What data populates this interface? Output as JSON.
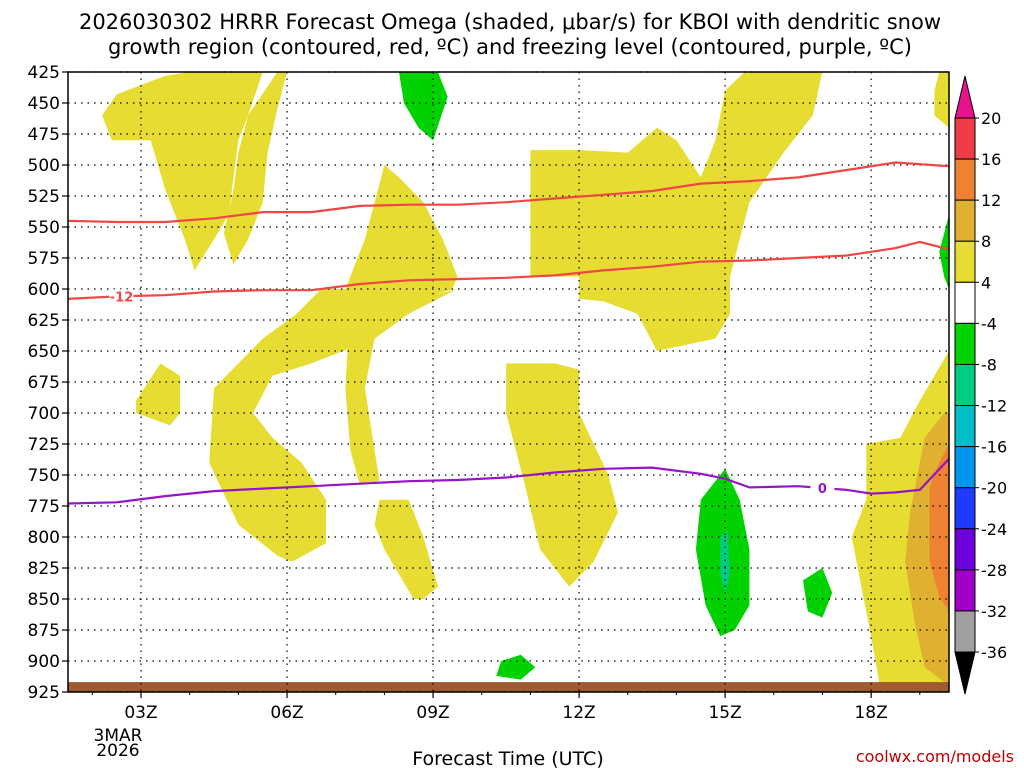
{
  "chart_data": {
    "type": "time-height",
    "title_line1": "2026030302 HRRR Forecast Omega (shaded, μbar/s) for KBOI with dendritic snow",
    "title_line2": "growth region (contoured, red, ºC) and freezing level (contoured, purple, ºC)",
    "xlabel": "Forecast Time (UTC)",
    "credit": "coolwx.com/models",
    "date_label": [
      "3MAR",
      "2026"
    ],
    "xlim": [
      1.5,
      19.6
    ],
    "x_ticks": [
      {
        "hour": 3,
        "label": "03Z"
      },
      {
        "hour": 6,
        "label": "06Z"
      },
      {
        "hour": 9,
        "label": "09Z"
      },
      {
        "hour": 12,
        "label": "12Z"
      },
      {
        "hour": 15,
        "label": "15Z"
      },
      {
        "hour": 18,
        "label": "18Z"
      }
    ],
    "y_levels": [
      "425",
      "450",
      "475",
      "500",
      "525",
      "550",
      "575",
      "600",
      "625",
      "650",
      "675",
      "700",
      "725",
      "750",
      "775",
      "800",
      "825",
      "850",
      "875",
      "900",
      "925"
    ],
    "ylim_hPa": [
      425,
      925
    ],
    "colorbar": {
      "labels": [
        "20",
        "16",
        "12",
        "8",
        "4",
        "-4",
        "-8",
        "-12",
        "-16",
        "-20",
        "-24",
        "-28",
        "-32",
        "-36"
      ],
      "bins": [
        {
          "from": 16,
          "to": 20,
          "color": "#f03c46"
        },
        {
          "from": 12,
          "to": 16,
          "color": "#ee8232"
        },
        {
          "from": 8,
          "to": 12,
          "color": "#e0b030"
        },
        {
          "from": 4,
          "to": 8,
          "color": "#e6dc32"
        },
        {
          "from": -4,
          "to": 4,
          "color": "#ffffff"
        },
        {
          "from": -8,
          "to": -4,
          "color": "#00d200"
        },
        {
          "from": -12,
          "to": -8,
          "color": "#00cc82"
        },
        {
          "from": -16,
          "to": -12,
          "color": "#00bec8"
        },
        {
          "from": -20,
          "to": -16,
          "color": "#0096f0"
        },
        {
          "from": -24,
          "to": -20,
          "color": "#1e3cff"
        },
        {
          "from": -28,
          "to": -24,
          "color": "#6e00dc"
        },
        {
          "from": -32,
          "to": -28,
          "color": "#a000c8"
        },
        {
          "from": -36,
          "to": -32,
          "color": "#a0a0a0"
        }
      ],
      "top_arrow_color": "#e6148c",
      "bottom_arrow_color": "#000000"
    },
    "colors": {
      "dgz": "#f04646",
      "freezing": "#9614c8",
      "terrain": "#a05a32",
      "green": "#00d200",
      "yellow": "#e6dc32",
      "gold": "#e0b030",
      "orange": "#ee8232",
      "teal": "#00cc82"
    },
    "contours": [
      {
        "name": "dgz-upper",
        "label": "",
        "color": "dgz",
        "points": [
          [
            1.5,
            545
          ],
          [
            2.5,
            546
          ],
          [
            3.5,
            546
          ],
          [
            4.5,
            543
          ],
          [
            5.5,
            538
          ],
          [
            6.5,
            538
          ],
          [
            7.5,
            533
          ],
          [
            8.5,
            532
          ],
          [
            9.5,
            532
          ],
          [
            10.5,
            530
          ],
          [
            11.5,
            527
          ],
          [
            12.5,
            524
          ],
          [
            13.5,
            521
          ],
          [
            14.5,
            515
          ],
          [
            15.5,
            513
          ],
          [
            16.5,
            510
          ],
          [
            17.5,
            504
          ],
          [
            18.5,
            498
          ],
          [
            19.6,
            501
          ]
        ]
      },
      {
        "name": "dgz-lower",
        "label": "-12",
        "label_hour": 2.6,
        "color": "dgz",
        "points": [
          [
            1.5,
            608
          ],
          [
            2.5,
            606
          ],
          [
            3.5,
            605
          ],
          [
            4.5,
            602
          ],
          [
            5.5,
            601
          ],
          [
            6.5,
            601
          ],
          [
            7.5,
            596
          ],
          [
            8.5,
            593
          ],
          [
            9.5,
            592
          ],
          [
            10.5,
            591
          ],
          [
            11.5,
            589
          ],
          [
            12.5,
            585
          ],
          [
            13.5,
            582
          ],
          [
            14.5,
            578
          ],
          [
            15.5,
            577
          ],
          [
            16.5,
            575
          ],
          [
            17.5,
            573
          ],
          [
            18.5,
            567
          ],
          [
            19.0,
            562
          ],
          [
            19.6,
            568
          ]
        ]
      },
      {
        "name": "freezing-level",
        "label": "0",
        "label_hour": 17.0,
        "color": "freezing",
        "points": [
          [
            1.5,
            773
          ],
          [
            2.5,
            772
          ],
          [
            3.5,
            767
          ],
          [
            4.5,
            763
          ],
          [
            5.5,
            761
          ],
          [
            6.5,
            759
          ],
          [
            7.5,
            757
          ],
          [
            8.5,
            755
          ],
          [
            9.5,
            754
          ],
          [
            10.5,
            752
          ],
          [
            11.5,
            748
          ],
          [
            12.5,
            745
          ],
          [
            13.5,
            744
          ],
          [
            14.5,
            749
          ],
          [
            15.0,
            753
          ],
          [
            15.5,
            760
          ],
          [
            16.5,
            759
          ],
          [
            17.5,
            762
          ],
          [
            18.0,
            765
          ],
          [
            18.5,
            764
          ],
          [
            19.0,
            762
          ],
          [
            19.6,
            737
          ]
        ]
      }
    ],
    "shaded_regions": [
      {
        "color": "yellow",
        "points": [
          [
            2.5,
            443
          ],
          [
            3.5,
            428
          ],
          [
            4.0,
            425
          ],
          [
            5.5,
            425
          ],
          [
            5.2,
            460
          ],
          [
            5.0,
            480
          ],
          [
            4.9,
            510
          ],
          [
            4.8,
            540
          ],
          [
            4.5,
            560
          ],
          [
            4.1,
            585
          ],
          [
            3.9,
            560
          ],
          [
            3.5,
            520
          ],
          [
            3.2,
            480
          ],
          [
            2.4,
            480
          ],
          [
            2.2,
            460
          ]
        ]
      },
      {
        "color": "yellow",
        "points": [
          [
            5.8,
            425
          ],
          [
            5.2,
            460
          ],
          [
            5.0,
            490
          ],
          [
            4.9,
            520
          ],
          [
            4.7,
            555
          ],
          [
            4.9,
            580
          ],
          [
            5.2,
            560
          ],
          [
            5.5,
            530
          ],
          [
            5.6,
            490
          ],
          [
            5.8,
            455
          ],
          [
            6.0,
            425
          ]
        ]
      },
      {
        "color": "yellow",
        "points": [
          [
            7.2,
            600
          ],
          [
            7.6,
            560
          ],
          [
            8.0,
            500
          ],
          [
            8.3,
            510
          ],
          [
            8.8,
            530
          ],
          [
            9.2,
            560
          ],
          [
            9.5,
            590
          ],
          [
            9.4,
            600
          ],
          [
            8.5,
            612
          ],
          [
            7.8,
            640
          ],
          [
            6.5,
            660
          ],
          [
            5.7,
            670
          ],
          [
            5.3,
            700
          ],
          [
            5.7,
            720
          ],
          [
            6.3,
            740
          ],
          [
            6.8,
            770
          ],
          [
            6.8,
            805
          ],
          [
            6.1,
            820
          ],
          [
            5.8,
            815
          ],
          [
            5.0,
            790
          ],
          [
            4.4,
            740
          ],
          [
            4.5,
            680
          ],
          [
            5.5,
            640
          ],
          [
            6.2,
            620
          ],
          [
            6.7,
            600
          ]
        ]
      },
      {
        "color": "yellow",
        "points": [
          [
            7.3,
            610
          ],
          [
            8.5,
            610
          ],
          [
            9.5,
            600
          ],
          [
            8.5,
            620
          ],
          [
            7.8,
            640
          ],
          [
            7.6,
            680
          ],
          [
            7.8,
            730
          ],
          [
            7.9,
            755
          ],
          [
            7.5,
            758
          ],
          [
            7.3,
            730
          ],
          [
            7.2,
            680
          ]
        ]
      },
      {
        "color": "yellow",
        "points": [
          [
            7.9,
            770
          ],
          [
            8.5,
            770
          ],
          [
            8.8,
            800
          ],
          [
            9.1,
            840
          ],
          [
            8.8,
            850
          ],
          [
            8.6,
            850
          ],
          [
            8.3,
            830
          ],
          [
            8.0,
            810
          ],
          [
            7.8,
            790
          ]
        ]
      },
      {
        "color": "yellow",
        "points": [
          [
            2.9,
            690
          ],
          [
            3.4,
            660
          ],
          [
            3.8,
            670
          ],
          [
            3.8,
            700
          ],
          [
            3.6,
            710
          ],
          [
            2.9,
            700
          ]
        ]
      },
      {
        "color": "yellow",
        "points": [
          [
            11.0,
            488
          ],
          [
            12.0,
            488
          ],
          [
            13.0,
            490
          ],
          [
            13.6,
            470
          ],
          [
            14.0,
            480
          ],
          [
            14.5,
            510
          ],
          [
            14.8,
            480
          ],
          [
            15.0,
            440
          ],
          [
            15.4,
            425
          ],
          [
            17.0,
            425
          ],
          [
            16.8,
            460
          ],
          [
            16.2,
            490
          ],
          [
            15.5,
            530
          ],
          [
            15.1,
            590
          ],
          [
            15.1,
            620
          ],
          [
            14.8,
            640
          ],
          [
            13.6,
            650
          ],
          [
            13.2,
            620
          ],
          [
            12.5,
            610
          ],
          [
            12.0,
            608
          ],
          [
            12.0,
            590
          ],
          [
            11.0,
            590
          ]
        ]
      },
      {
        "color": "yellow",
        "points": [
          [
            10.5,
            660
          ],
          [
            11.5,
            660
          ],
          [
            12.0,
            665
          ],
          [
            12.0,
            700
          ],
          [
            12.6,
            750
          ],
          [
            12.8,
            780
          ],
          [
            12.3,
            820
          ],
          [
            11.8,
            840
          ],
          [
            11.2,
            810
          ],
          [
            10.9,
            760
          ],
          [
            10.5,
            700
          ]
        ]
      },
      {
        "color": "yellow",
        "points": [
          [
            17.9,
            725
          ],
          [
            18.6,
            720
          ],
          [
            19.0,
            690
          ],
          [
            19.6,
            650
          ],
          [
            19.6,
            925
          ],
          [
            18.2,
            925
          ],
          [
            18.0,
            880
          ],
          [
            17.6,
            800
          ],
          [
            17.9,
            770
          ]
        ]
      },
      {
        "color": "yellow",
        "points": [
          [
            19.4,
            425
          ],
          [
            19.6,
            425
          ],
          [
            19.6,
            470
          ],
          [
            19.3,
            460
          ],
          [
            19.3,
            440
          ]
        ]
      },
      {
        "color": "gold",
        "points": [
          [
            18.8,
            780
          ],
          [
            19.1,
            720
          ],
          [
            19.5,
            700
          ],
          [
            19.6,
            700
          ],
          [
            19.6,
            920
          ],
          [
            19.1,
            905
          ],
          [
            18.9,
            870
          ],
          [
            18.7,
            820
          ]
        ]
      },
      {
        "color": "orange",
        "points": [
          [
            19.2,
            760
          ],
          [
            19.4,
            740
          ],
          [
            19.6,
            725
          ],
          [
            19.6,
            860
          ],
          [
            19.4,
            848
          ],
          [
            19.2,
            820
          ]
        ]
      },
      {
        "color": "green",
        "points": [
          [
            8.3,
            425
          ],
          [
            9.1,
            425
          ],
          [
            9.3,
            445
          ],
          [
            9.0,
            480
          ],
          [
            8.7,
            470
          ],
          [
            8.4,
            450
          ]
        ]
      },
      {
        "color": "green",
        "points": [
          [
            19.6,
            540
          ],
          [
            19.4,
            570
          ],
          [
            19.5,
            590
          ],
          [
            19.6,
            600
          ]
        ]
      },
      {
        "color": "green",
        "points": [
          [
            14.5,
            770
          ],
          [
            15.0,
            745
          ],
          [
            15.3,
            770
          ],
          [
            15.5,
            810
          ],
          [
            15.5,
            855
          ],
          [
            15.2,
            875
          ],
          [
            14.9,
            880
          ],
          [
            14.6,
            855
          ],
          [
            14.4,
            810
          ]
        ]
      },
      {
        "color": "teal",
        "points": [
          [
            14.9,
            800
          ],
          [
            15.05,
            795
          ],
          [
            15.1,
            830
          ],
          [
            15.0,
            845
          ],
          [
            14.9,
            830
          ]
        ]
      },
      {
        "color": "green",
        "points": [
          [
            16.6,
            835
          ],
          [
            17.0,
            825
          ],
          [
            17.2,
            845
          ],
          [
            17.0,
            865
          ],
          [
            16.7,
            860
          ]
        ]
      },
      {
        "color": "green",
        "points": [
          [
            10.4,
            900
          ],
          [
            10.8,
            895
          ],
          [
            11.1,
            905
          ],
          [
            10.8,
            915
          ],
          [
            10.3,
            912
          ]
        ]
      }
    ],
    "terrain_top_hPa": 917
  }
}
